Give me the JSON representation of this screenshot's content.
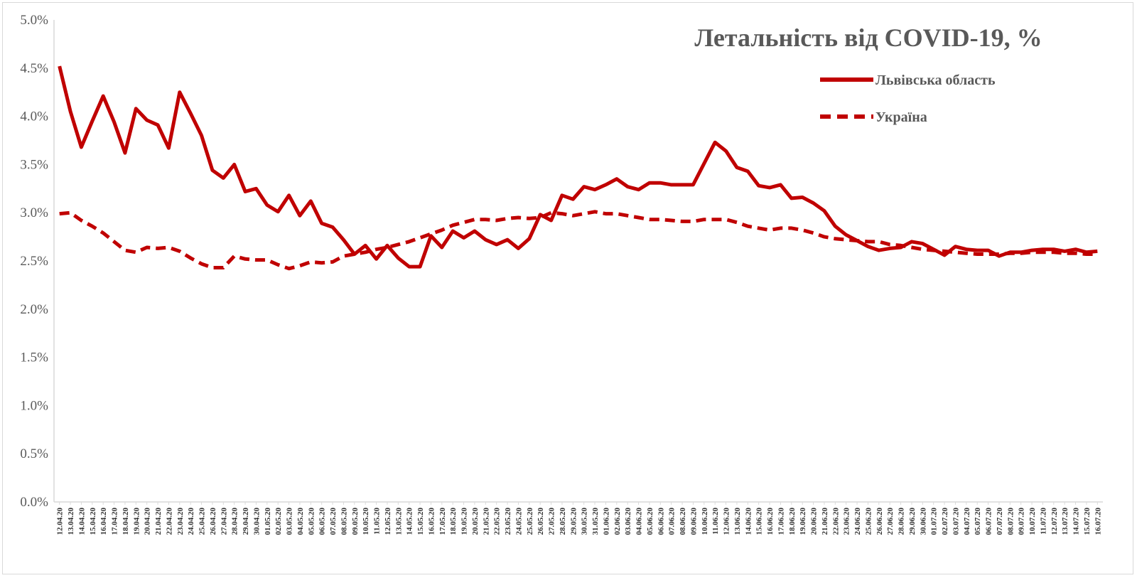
{
  "chart_data": {
    "type": "line",
    "title": "Летальність від COVID-19, %",
    "xlabel": "",
    "ylabel": "",
    "ylim": [
      0,
      5
    ],
    "yticks": [
      "0.0%",
      "0.5%",
      "1.0%",
      "1.5%",
      "2.0%",
      "2.5%",
      "3.0%",
      "3.5%",
      "4.0%",
      "4.5%",
      "5.0%"
    ],
    "legend_position": "top-right",
    "grid": false,
    "x": [
      "12.04.20",
      "13.04.20",
      "14.04.20",
      "15.04.20",
      "16.04.20",
      "17.04.20",
      "18.04.20",
      "19.04.20",
      "20.04.20",
      "21.04.20",
      "22.04.20",
      "23.04.20",
      "24.04.20",
      "25.04.20",
      "26.04.20",
      "27.04.20",
      "28.04.20",
      "29.04.20",
      "30.04.20",
      "01.05.20",
      "02.05.20",
      "03.05.20",
      "04.05.20",
      "05.05.20",
      "06.05.20",
      "07.05.20",
      "08.05.20",
      "09.05.20",
      "10.05.20",
      "11.05.20",
      "12.05.20",
      "13.05.20",
      "14.05.20",
      "15.05.20",
      "16.05.20",
      "17.05.20",
      "18.05.20",
      "19.05.20",
      "20.05.20",
      "21.05.20",
      "22.05.20",
      "23.05.20",
      "24.05.20",
      "25.05.20",
      "26.05.20",
      "27.05.20",
      "28.05.20",
      "29.05.20",
      "30.05.20",
      "31.05.20",
      "01.06.20",
      "02.06.20",
      "03.06.20",
      "04.06.20",
      "05.06.20",
      "06.06.20",
      "07.06.20",
      "08.06.20",
      "09.06.20",
      "10.06.20",
      "11.06.20",
      "12.06.20",
      "13.06.20",
      "14.06.20",
      "15.06.20",
      "16.06.20",
      "17.06.20",
      "18.06.20",
      "19.06.20",
      "20.06.20",
      "21.06.20",
      "22.06.20",
      "23.06.20",
      "24.06.20",
      "25.06.20",
      "26.06.20",
      "27.06.20",
      "28.06.20",
      "29.06.20",
      "30.06.20",
      "01.07.20",
      "02.07.20",
      "03.07.20",
      "04.07.20",
      "05.07.20",
      "06.07.20",
      "07.07.20",
      "08.07.20",
      "09.07.20",
      "10.07.20",
      "11.07.20",
      "12.07.20",
      "13.07.20",
      "14.07.20",
      "15.07.20",
      "16.07.20"
    ],
    "series": [
      {
        "name": "Львівська область",
        "color": "#c00000",
        "style": "solid",
        "values": [
          4.52,
          4.05,
          3.68,
          3.95,
          4.21,
          3.94,
          3.62,
          4.08,
          3.96,
          3.91,
          3.67,
          4.25,
          4.03,
          3.8,
          3.44,
          3.36,
          3.5,
          3.22,
          3.25,
          3.08,
          3.01,
          3.18,
          2.97,
          3.12,
          2.89,
          2.85,
          2.72,
          2.57,
          2.66,
          2.52,
          2.66,
          2.53,
          2.44,
          2.44,
          2.76,
          2.64,
          2.81,
          2.74,
          2.81,
          2.72,
          2.67,
          2.72,
          2.63,
          2.73,
          2.98,
          2.92,
          3.18,
          3.14,
          3.27,
          3.24,
          3.29,
          3.35,
          3.27,
          3.24,
          3.31,
          3.31,
          3.29,
          3.29,
          3.29,
          3.51,
          3.73,
          3.64,
          3.47,
          3.43,
          3.28,
          3.26,
          3.29,
          3.15,
          3.16,
          3.1,
          3.02,
          2.86,
          2.77,
          2.71,
          2.65,
          2.61,
          2.63,
          2.64,
          2.7,
          2.68,
          2.62,
          2.56,
          2.65,
          2.62,
          2.61,
          2.61,
          2.55,
          2.59,
          2.59,
          2.61,
          2.62,
          2.62,
          2.6,
          2.62,
          2.59,
          2.6
        ]
      },
      {
        "name": "Україна",
        "color": "#c00000",
        "style": "dashed",
        "values": [
          2.99,
          3.0,
          2.92,
          2.86,
          2.79,
          2.7,
          2.61,
          2.59,
          2.64,
          2.63,
          2.64,
          2.6,
          2.53,
          2.47,
          2.43,
          2.43,
          2.55,
          2.52,
          2.51,
          2.51,
          2.46,
          2.42,
          2.45,
          2.49,
          2.48,
          2.49,
          2.55,
          2.57,
          2.59,
          2.62,
          2.64,
          2.67,
          2.7,
          2.74,
          2.78,
          2.82,
          2.87,
          2.9,
          2.93,
          2.93,
          2.92,
          2.94,
          2.95,
          2.94,
          2.95,
          3.0,
          2.99,
          2.97,
          2.99,
          3.01,
          2.99,
          2.99,
          2.97,
          2.95,
          2.93,
          2.93,
          2.92,
          2.91,
          2.91,
          2.93,
          2.93,
          2.93,
          2.9,
          2.86,
          2.84,
          2.82,
          2.84,
          2.84,
          2.82,
          2.79,
          2.75,
          2.73,
          2.72,
          2.71,
          2.7,
          2.7,
          2.67,
          2.66,
          2.64,
          2.62,
          2.61,
          2.6,
          2.59,
          2.58,
          2.57,
          2.57,
          2.57,
          2.58,
          2.58,
          2.59,
          2.59,
          2.59,
          2.58,
          2.58,
          2.57,
          2.57
        ]
      }
    ]
  }
}
